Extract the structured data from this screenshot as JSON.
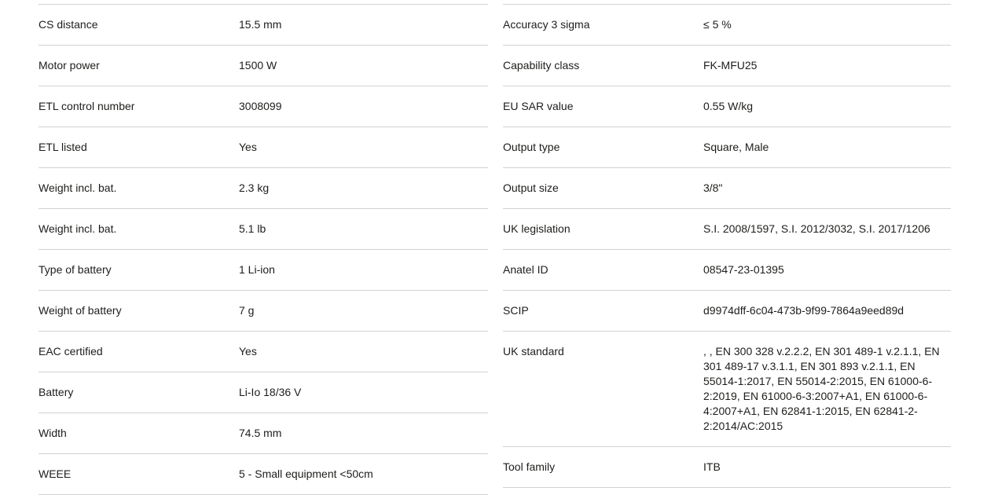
{
  "colors": {
    "background": "#ffffff",
    "text": "#1d1d1b",
    "divider": "#d2d2d2"
  },
  "spec_table": {
    "left_column": [
      {
        "label": "CS distance",
        "value": "15.5 mm"
      },
      {
        "label": "Motor power",
        "value": "1500 W"
      },
      {
        "label": "ETL control number",
        "value": "3008099"
      },
      {
        "label": "ETL listed",
        "value": "Yes"
      },
      {
        "label": "Weight incl. bat.",
        "value": "2.3 kg"
      },
      {
        "label": "Weight incl. bat.",
        "value": "5.1 lb"
      },
      {
        "label": "Type of battery",
        "value": "1 Li-ion"
      },
      {
        "label": "Weight of battery",
        "value": "7 g"
      },
      {
        "label": "EAC certified",
        "value": "Yes"
      },
      {
        "label": "Battery",
        "value": "Li-Io 18/36 V"
      },
      {
        "label": "Width",
        "value": "74.5 mm"
      },
      {
        "label": "WEEE",
        "value": "5 - Small equipment <50cm"
      }
    ],
    "right_column": [
      {
        "label": "Accuracy 3 sigma",
        "value": "≤ 5 %"
      },
      {
        "label": "Capability class",
        "value": "FK-MFU25"
      },
      {
        "label": "EU SAR value",
        "value": "0.55 W/kg"
      },
      {
        "label": "Output type",
        "value": "Square, Male"
      },
      {
        "label": "Output size",
        "value": "3/8\""
      },
      {
        "label": "UK legislation",
        "value": "S.I. 2008/1597, S.I. 2012/3032, S.I. 2017/1206"
      },
      {
        "label": "Anatel ID",
        "value": "08547-23-01395"
      },
      {
        "label": "SCIP",
        "value": "d9974dff-6c04-473b-9f99-7864a9eed89d"
      },
      {
        "label": "UK standard",
        "value": ", , EN 300 328 v.2.2.2, EN 301 489-1 v.2.1.1, EN 301 489-17 v.3.1.1, EN 301 893 v.2.1.1, EN 55014-1:2017, EN 55014-2:2015, EN 61000-6-2:2019, EN 61000-6-3:2007+A1, EN 61000-6-4:2007+A1, EN 62841-1:2015, EN 62841-2-2:2014/AC:2015"
      },
      {
        "label": "Tool family",
        "value": "ITB"
      }
    ]
  }
}
